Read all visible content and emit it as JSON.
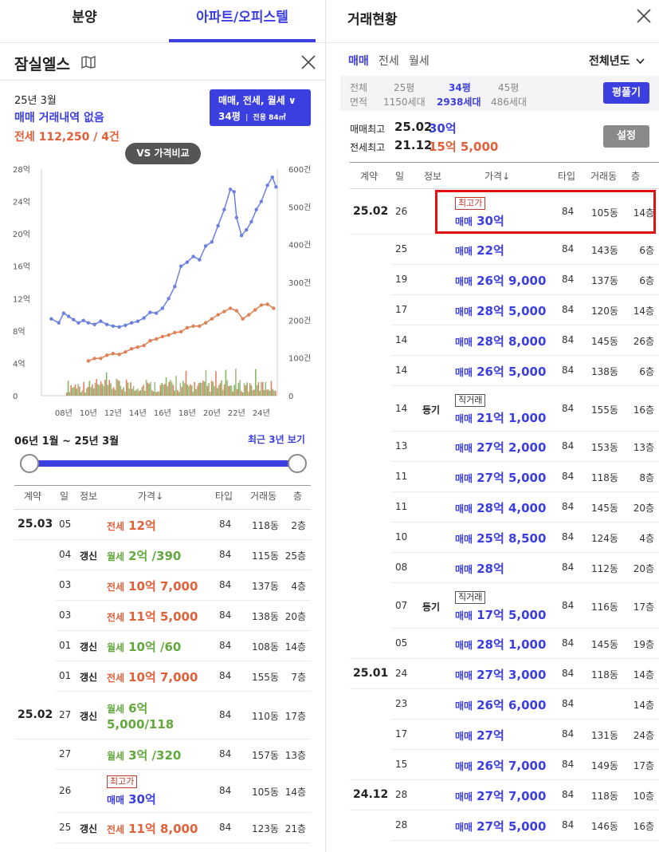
{
  "colors": {
    "accent": "#3b3fe0",
    "jeonse": "#e0603a",
    "wolse": "#62a83c",
    "highlight": "#e21010"
  },
  "left": {
    "tabs": [
      "분양",
      "아파트/오피스텔"
    ],
    "title": "잠실엘스",
    "map_icon": "map-icon",
    "close_icon": "close-icon",
    "summary": {
      "month": "25년 3월",
      "sale_status": "매매 거래내역 없음",
      "jeonse_line": "전세 112,250 / 4건"
    },
    "filter": {
      "line1": "매매, 전세, 월세 ∨",
      "line2_size": "34평",
      "line2_sep": "|",
      "line2_area": "전용 84㎡"
    },
    "compare_button": "VS 가격비교",
    "chart_data": {
      "type": "line",
      "x_ticks": [
        "08년",
        "10년",
        "12년",
        "14년",
        "16년",
        "18년",
        "20년",
        "22년",
        "24년"
      ],
      "y_left_ticks": [
        "28억",
        "24억",
        "20억",
        "16억",
        "12억",
        "8억",
        "4억",
        "0"
      ],
      "y_right_ticks": [
        "600건",
        "500건",
        "400건",
        "300건",
        "200건",
        "100건",
        "0"
      ],
      "ylim_left": [
        0,
        28
      ],
      "ylim_right": [
        0,
        600
      ],
      "series": [
        {
          "values_x": [
            2007.0,
            2007.6,
            2008.0,
            2008.4,
            2008.8,
            2009.2,
            2009.6,
            2010.0,
            2010.5,
            2011.0,
            2011.5,
            2012.0,
            2012.5,
            2013.0,
            2013.5,
            2014.0,
            2014.5,
            2015.0,
            2015.5,
            2016.0,
            2016.5,
            2017.0,
            2017.5,
            2018.0,
            2018.5,
            2019.0,
            2019.5,
            2020.0,
            2020.5,
            2021.0,
            2021.5,
            2021.8,
            2022.0,
            2022.4,
            2022.8,
            2023.2,
            2023.6,
            2024.0,
            2024.5,
            2024.9,
            2025.2
          ],
          "values_y": [
            9.5,
            9.0,
            10.2,
            9.8,
            9.4,
            9.0,
            9.3,
            9.0,
            8.8,
            9.2,
            8.8,
            8.6,
            8.5,
            8.7,
            9.0,
            9.2,
            9.6,
            10.3,
            10.2,
            10.8,
            12.0,
            13.5,
            16.0,
            16.5,
            17.2,
            16.8,
            18.5,
            19.0,
            21.0,
            23.0,
            25.5,
            25.2,
            22.0,
            19.8,
            20.5,
            21.5,
            23.0,
            24.0,
            26.0,
            27.0,
            25.8
          ]
        },
        {
          "values_x": [
            2010.0,
            2010.5,
            2011.0,
            2011.5,
            2012.0,
            2012.5,
            2013.0,
            2013.5,
            2014.0,
            2014.5,
            2015.0,
            2015.5,
            2016.0,
            2016.5,
            2017.0,
            2017.5,
            2018.0,
            2018.5,
            2019.0,
            2019.5,
            2020.0,
            2020.5,
            2021.0,
            2021.5,
            2022.0,
            2022.5,
            2023.0,
            2023.5,
            2024.0,
            2024.5,
            2025.0
          ],
          "values_y": [
            4.3,
            4.6,
            4.6,
            5.0,
            5.2,
            5.1,
            5.4,
            5.8,
            6.0,
            6.2,
            6.8,
            7.0,
            7.3,
            7.5,
            7.8,
            7.9,
            8.4,
            8.6,
            8.6,
            9.0,
            9.5,
            10.0,
            10.4,
            10.8,
            10.5,
            9.5,
            10.0,
            10.6,
            11.2,
            11.3,
            10.8
          ]
        }
      ]
    },
    "date_range": "06년 1월 ~ 25년 3월",
    "recent_link": "최근 3년 보기",
    "table_headers": [
      "계약",
      "일",
      "정보",
      "가격↓",
      "타입",
      "거래동",
      "층"
    ],
    "rows": [
      {
        "month": "25.03",
        "day": "05",
        "info": "",
        "tag": "",
        "type_label": "전세",
        "price": "12억",
        "kind": "jeonse",
        "ptype": "84",
        "dong": "118동",
        "floor": "2층"
      },
      {
        "month": "",
        "day": "04",
        "info": "갱신",
        "tag": "",
        "type_label": "월세",
        "price": "2억 /390",
        "kind": "wolse",
        "ptype": "84",
        "dong": "115동",
        "floor": "25층"
      },
      {
        "month": "",
        "day": "03",
        "info": "",
        "tag": "",
        "type_label": "전세",
        "price": "10억 7,000",
        "kind": "jeonse",
        "ptype": "84",
        "dong": "137동",
        "floor": "4층"
      },
      {
        "month": "",
        "day": "03",
        "info": "",
        "tag": "",
        "type_label": "전세",
        "price": "11억 5,000",
        "kind": "jeonse",
        "ptype": "84",
        "dong": "138동",
        "floor": "20층"
      },
      {
        "month": "",
        "day": "01",
        "info": "갱신",
        "tag": "",
        "type_label": "월세",
        "price": "10억 /60",
        "kind": "wolse",
        "ptype": "84",
        "dong": "108동",
        "floor": "14층"
      },
      {
        "month": "",
        "day": "01",
        "info": "갱신",
        "tag": "",
        "type_label": "전세",
        "price": "10억 7,000",
        "kind": "jeonse",
        "ptype": "84",
        "dong": "155동",
        "floor": "7층"
      },
      {
        "month": "25.02",
        "day": "27",
        "info": "갱신",
        "tag": "",
        "type_label": "월세",
        "price": "6억",
        "price2": "5,000/118",
        "kind": "wolse",
        "ptype": "84",
        "dong": "110동",
        "floor": "17층"
      },
      {
        "month": "",
        "day": "27",
        "info": "",
        "tag": "",
        "type_label": "월세",
        "price": "3억 /320",
        "kind": "wolse",
        "ptype": "84",
        "dong": "157동",
        "floor": "13층"
      },
      {
        "month": "",
        "day": "26",
        "info": "",
        "tag": "최고가",
        "type_label": "매매",
        "price": "30억",
        "kind": "sale",
        "ptype": "84",
        "dong": "105동",
        "floor": "14층"
      },
      {
        "month": "",
        "day": "25",
        "info": "갱신",
        "tag": "",
        "type_label": "전세",
        "price": "11억 8,000",
        "kind": "jeonse",
        "ptype": "84",
        "dong": "123동",
        "floor": "21층"
      }
    ]
  },
  "right": {
    "title": "거래현황",
    "close_icon": "close-icon",
    "deal_tabs": [
      "매매",
      "전세",
      "월세"
    ],
    "year_select": "전체년도",
    "size_filter": {
      "col_label1": "전체",
      "col_label2": "면적",
      "sizes": [
        {
          "size": "25평",
          "households": "1150세대"
        },
        {
          "size": "34평",
          "households": "2938세대"
        },
        {
          "size": "45평",
          "households": "486세대"
        }
      ],
      "unfold_button": "평풀기"
    },
    "max": {
      "sale_label": "매매최고",
      "sale_date": "25.02",
      "sale_price": "30억",
      "jeonse_label": "전세최고",
      "jeonse_date": "21.12",
      "jeonse_price": "15억 5,000",
      "settings_button": "설정"
    },
    "table_headers": [
      "계약",
      "일",
      "정보",
      "가격↓",
      "타입",
      "거래동",
      "층"
    ],
    "rows": [
      {
        "month": "25.02",
        "day": "26",
        "info": "",
        "tag": "최고가",
        "type_label": "매매",
        "price": "30억",
        "ptype": "84",
        "dong": "105동",
        "floor": "14층",
        "highlight": true
      },
      {
        "month": "",
        "day": "25",
        "info": "",
        "tag": "",
        "type_label": "매매",
        "price": "22억",
        "ptype": "84",
        "dong": "143동",
        "floor": "6층"
      },
      {
        "month": "",
        "day": "19",
        "info": "",
        "tag": "",
        "type_label": "매매",
        "price": "26억 9,000",
        "ptype": "84",
        "dong": "137동",
        "floor": "6층"
      },
      {
        "month": "",
        "day": "17",
        "info": "",
        "tag": "",
        "type_label": "매매",
        "price": "28억 5,000",
        "ptype": "84",
        "dong": "120동",
        "floor": "14층"
      },
      {
        "month": "",
        "day": "14",
        "info": "",
        "tag": "",
        "type_label": "매매",
        "price": "28억 8,000",
        "ptype": "84",
        "dong": "145동",
        "floor": "26층"
      },
      {
        "month": "",
        "day": "14",
        "info": "",
        "tag": "",
        "type_label": "매매",
        "price": "26억 5,000",
        "ptype": "84",
        "dong": "138동",
        "floor": "6층"
      },
      {
        "month": "",
        "day": "14",
        "info": "등기",
        "tag": "직거래",
        "type_label": "매매",
        "price": "21억 1,000",
        "ptype": "84",
        "dong": "155동",
        "floor": "16층"
      },
      {
        "month": "",
        "day": "13",
        "info": "",
        "tag": "",
        "type_label": "매매",
        "price": "27억 2,000",
        "ptype": "84",
        "dong": "153동",
        "floor": "13층"
      },
      {
        "month": "",
        "day": "11",
        "info": "",
        "tag": "",
        "type_label": "매매",
        "price": "27억 5,000",
        "ptype": "84",
        "dong": "118동",
        "floor": "8층"
      },
      {
        "month": "",
        "day": "11",
        "info": "",
        "tag": "",
        "type_label": "매매",
        "price": "28억 4,000",
        "ptype": "84",
        "dong": "145동",
        "floor": "20층"
      },
      {
        "month": "",
        "day": "10",
        "info": "",
        "tag": "",
        "type_label": "매매",
        "price": "25억 8,500",
        "ptype": "84",
        "dong": "124동",
        "floor": "4층"
      },
      {
        "month": "",
        "day": "08",
        "info": "",
        "tag": "",
        "type_label": "매매",
        "price": "28억",
        "ptype": "84",
        "dong": "112동",
        "floor": "20층"
      },
      {
        "month": "",
        "day": "07",
        "info": "등기",
        "tag": "직거래",
        "type_label": "매매",
        "price": "17억 5,000",
        "ptype": "84",
        "dong": "116동",
        "floor": "17층"
      },
      {
        "month": "",
        "day": "05",
        "info": "",
        "tag": "",
        "type_label": "매매",
        "price": "28억 1,000",
        "ptype": "84",
        "dong": "145동",
        "floor": "19층"
      },
      {
        "month": "25.01",
        "day": "24",
        "info": "",
        "tag": "",
        "type_label": "매매",
        "price": "27억 3,000",
        "ptype": "84",
        "dong": "118동",
        "floor": "14층"
      },
      {
        "month": "",
        "day": "23",
        "info": "",
        "tag": "",
        "type_label": "매매",
        "price": "26억 6,000",
        "ptype": "84",
        "dong": "",
        "floor": "14층"
      },
      {
        "month": "",
        "day": "17",
        "info": "",
        "tag": "",
        "type_label": "매매",
        "price": "27억",
        "ptype": "84",
        "dong": "131동",
        "floor": "24층"
      },
      {
        "month": "",
        "day": "15",
        "info": "",
        "tag": "",
        "type_label": "매매",
        "price": "26억 7,000",
        "ptype": "84",
        "dong": "149동",
        "floor": "17층"
      },
      {
        "month": "24.12",
        "day": "28",
        "info": "",
        "tag": "",
        "type_label": "매매",
        "price": "27억 7,000",
        "ptype": "84",
        "dong": "118동",
        "floor": "10층"
      },
      {
        "month": "",
        "day": "28",
        "info": "",
        "tag": "",
        "type_label": "매매",
        "price": "27억 5,000",
        "ptype": "84",
        "dong": "146동",
        "floor": "16층"
      }
    ]
  }
}
